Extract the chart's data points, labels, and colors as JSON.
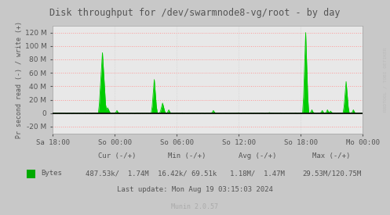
{
  "title": "Disk throughput for /dev/swarmnode8-vg/root - by day",
  "ylabel": "Pr second read (-) / write (+)",
  "xlabel_ticks": [
    "Sa 18:00",
    "So 00:00",
    "So 06:00",
    "So 12:00",
    "So 18:00",
    "Mo 00:00"
  ],
  "yticks_M": [
    -20,
    0,
    20,
    40,
    60,
    80,
    100,
    120
  ],
  "ylim_M": [
    -30,
    130
  ],
  "bg_color": "#c8c8c8",
  "plot_bg_color": "#e8e8e8",
  "grid_color_h": "#ff9999",
  "grid_color_v": "#cccccc",
  "line_color": "#00cc00",
  "zero_line_color": "#000000",
  "watermark": "RRDTOOL / TOBI OETIKER",
  "legend_label": "Bytes",
  "legend_color": "#00aa00",
  "cur_neg": "487.53k",
  "cur_pos": "1.74M",
  "min_neg": "16.42k",
  "min_pos": "69.51k",
  "avg_neg": "1.18M",
  "avg_pos": "1.47M",
  "max_neg": "29.53M",
  "max_pos": "120.75M",
  "last_update": "Last update: Mon Aug 19 03:15:03 2024",
  "munin_version": "Munin 2.0.57",
  "title_color": "#555555",
  "text_color": "#555555",
  "axis_color": "#aaaaaa"
}
